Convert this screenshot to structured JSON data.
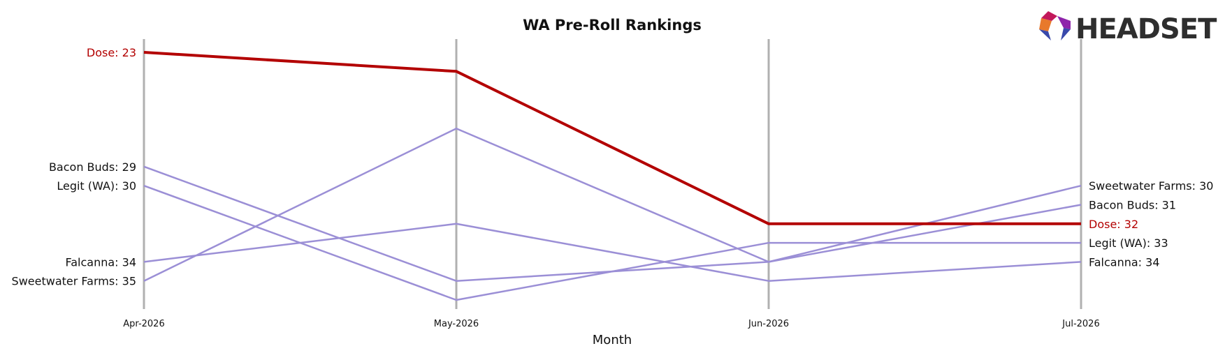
{
  "chart_data": {
    "type": "line",
    "title": "WA Pre-Roll Rankings",
    "xlabel": "Month",
    "ylabel": "",
    "categories": [
      "Apr-2026",
      "May-2026",
      "Jun-2026",
      "Jul-2026"
    ],
    "y_inverted": true,
    "ylim": [
      22,
      36
    ],
    "grid": false,
    "series": [
      {
        "name": "Dose",
        "values": [
          23,
          24,
          32,
          32
        ],
        "color": "#b30000",
        "highlight": true
      },
      {
        "name": "Bacon Buds",
        "values": [
          29,
          35,
          34,
          31
        ],
        "color": "#9b8fd6",
        "highlight": false
      },
      {
        "name": "Legit (WA)",
        "values": [
          30,
          36,
          33,
          33
        ],
        "color": "#9b8fd6",
        "highlight": false
      },
      {
        "name": "Falcanna",
        "values": [
          34,
          32,
          35,
          34
        ],
        "color": "#9b8fd6",
        "highlight": false
      },
      {
        "name": "Sweetwater Farms",
        "values": [
          35,
          27,
          34,
          30
        ],
        "color": "#9b8fd6",
        "highlight": false
      }
    ],
    "start_labels": [
      "Dose: 23",
      "Bacon Buds: 29",
      "Legit (WA): 30",
      "Falcanna: 34",
      "Sweetwater Farms: 35"
    ],
    "end_labels": [
      "Dose: 32",
      "Bacon Buds: 31",
      "Legit (WA): 33",
      "Falcanna: 34",
      "Sweetwater Farms: 30"
    ]
  },
  "logo": {
    "text": "HEADSET",
    "colors": [
      "#e8792b",
      "#c2185b",
      "#8e24aa",
      "#3949ab"
    ]
  },
  "colors": {
    "vertical_line": "#b0b0b0",
    "highlight_label": "#b30000",
    "normal_label": "#111111"
  }
}
